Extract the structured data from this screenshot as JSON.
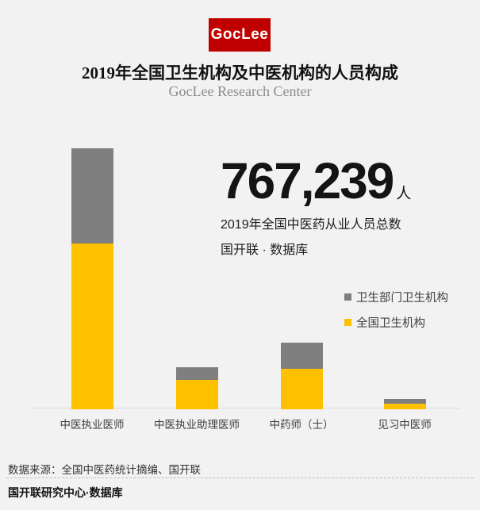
{
  "brand": {
    "logo_text": "GocLee",
    "logo_bg": "#c00000",
    "logo_fg": "#ffffff"
  },
  "header": {
    "title": "2019年全国卫生机构及中医机构的人员构成",
    "subtitle": "GocLee Research Center"
  },
  "stat": {
    "value": "767,239",
    "unit": "人",
    "description": "2019年全国中医药从业人员总数",
    "source": "国开联 · 数据库"
  },
  "chart_data": {
    "type": "bar",
    "stacked": true,
    "categories": [
      "中医执业医师",
      "中医执业助理医师",
      "中药师（士）",
      "见习中医师"
    ],
    "series": [
      {
        "name": "全国卫生机构",
        "color": "#ffc000",
        "values": [
          340000,
          60000,
          83000,
          11000
        ]
      },
      {
        "name": "卫生部门卫生机构",
        "color": "#7f7f7f",
        "values": [
          195000,
          27000,
          53000,
          10000
        ]
      }
    ],
    "title": "2019年全国卫生机构及中医机构的人员构成",
    "xlabel": "",
    "ylabel": "",
    "value_axis_visible": false,
    "gridlines": false,
    "legend_position": "right",
    "legend_order": [
      "卫生部门卫生机构",
      "全国卫生机构"
    ]
  },
  "colors": {
    "background": "#f2f2f2",
    "bar_yellow": "#ffc000",
    "bar_gray": "#7f7f7f",
    "brand_red": "#c00000",
    "axis_line": "#dcdcdc"
  },
  "footer": {
    "source": "数据来源：全国中医药统计摘编、国开联",
    "credit": "国开联研究中心·数据库"
  }
}
